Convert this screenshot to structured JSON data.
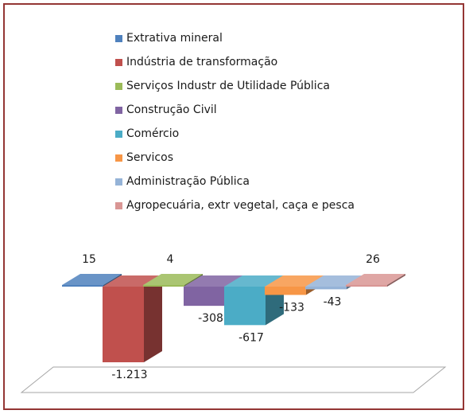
{
  "chart_data": {
    "type": "bar",
    "style": "3d-column",
    "title": "",
    "xlabel": "",
    "ylabel": "",
    "grid": false,
    "legend_position": "top",
    "series": [
      {
        "name": "Extrativa mineral",
        "value": 15,
        "label": "15",
        "color": "#4f81bd"
      },
      {
        "name": "Indústria de transformação",
        "value": -1213,
        "label": "-1.213",
        "color": "#c0504d"
      },
      {
        "name": "Serviços Industr de Utilidade Pública",
        "value": 4,
        "label": "4",
        "color": "#9bbb59"
      },
      {
        "name": "Construção Civil",
        "value": -308,
        "label": "-308",
        "color": "#8064a2"
      },
      {
        "name": "Comércio",
        "value": -617,
        "label": "-617",
        "color": "#4bacc6"
      },
      {
        "name": "Servicos",
        "value": -133,
        "label": "-133",
        "color": "#f79646"
      },
      {
        "name": "Administração Pública",
        "value": -43,
        "label": "-43",
        "color": "#95b3d7"
      },
      {
        "name": "Agropecuária, extr vegetal, caça e pesca",
        "value": 26,
        "label": "26",
        "color": "#d99694"
      }
    ]
  }
}
